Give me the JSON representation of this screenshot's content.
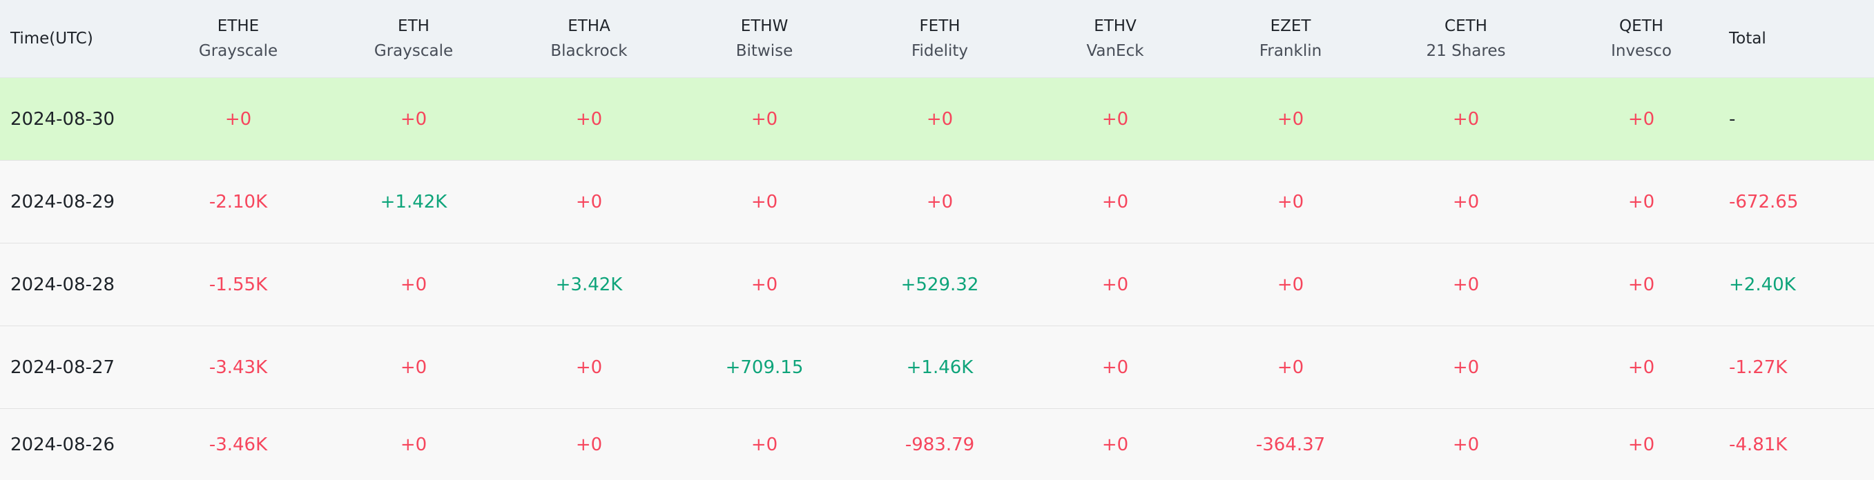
{
  "header": {
    "time_label": "Time(UTC)",
    "total_label": "Total",
    "funds": [
      {
        "ticker": "ETHE",
        "issuer": "Grayscale"
      },
      {
        "ticker": "ETH",
        "issuer": "Grayscale"
      },
      {
        "ticker": "ETHA",
        "issuer": "Blackrock"
      },
      {
        "ticker": "ETHW",
        "issuer": "Bitwise"
      },
      {
        "ticker": "FETH",
        "issuer": "Fidelity"
      },
      {
        "ticker": "ETHV",
        "issuer": "VanEck"
      },
      {
        "ticker": "EZET",
        "issuer": "Franklin"
      },
      {
        "ticker": "CETH",
        "issuer": "21 Shares"
      },
      {
        "ticker": "QETH",
        "issuer": "Invesco"
      }
    ]
  },
  "colors": {
    "negative": "#f6465d",
    "positive": "#0ea47a",
    "highlight_row": "#d9f9cf",
    "header_bg": "#eef2f5"
  },
  "rows": [
    {
      "date": "2024-08-30",
      "values": [
        "+0",
        "+0",
        "+0",
        "+0",
        "+0",
        "+0",
        "+0",
        "+0",
        "+0"
      ],
      "total": "-"
    },
    {
      "date": "2024-08-29",
      "values": [
        "-2.10K",
        "+1.42K",
        "+0",
        "+0",
        "+0",
        "+0",
        "+0",
        "+0",
        "+0"
      ],
      "total": "-672.65"
    },
    {
      "date": "2024-08-28",
      "values": [
        "-1.55K",
        "+0",
        "+3.42K",
        "+0",
        "+529.32",
        "+0",
        "+0",
        "+0",
        "+0"
      ],
      "total": "+2.40K"
    },
    {
      "date": "2024-08-27",
      "values": [
        "-3.43K",
        "+0",
        "+0",
        "+709.15",
        "+1.46K",
        "+0",
        "+0",
        "+0",
        "+0"
      ],
      "total": "-1.27K"
    },
    {
      "date": "2024-08-26",
      "values": [
        "-3.46K",
        "+0",
        "+0",
        "+0",
        "-983.79",
        "+0",
        "-364.37",
        "+0",
        "+0"
      ],
      "total": "-4.81K"
    }
  ]
}
